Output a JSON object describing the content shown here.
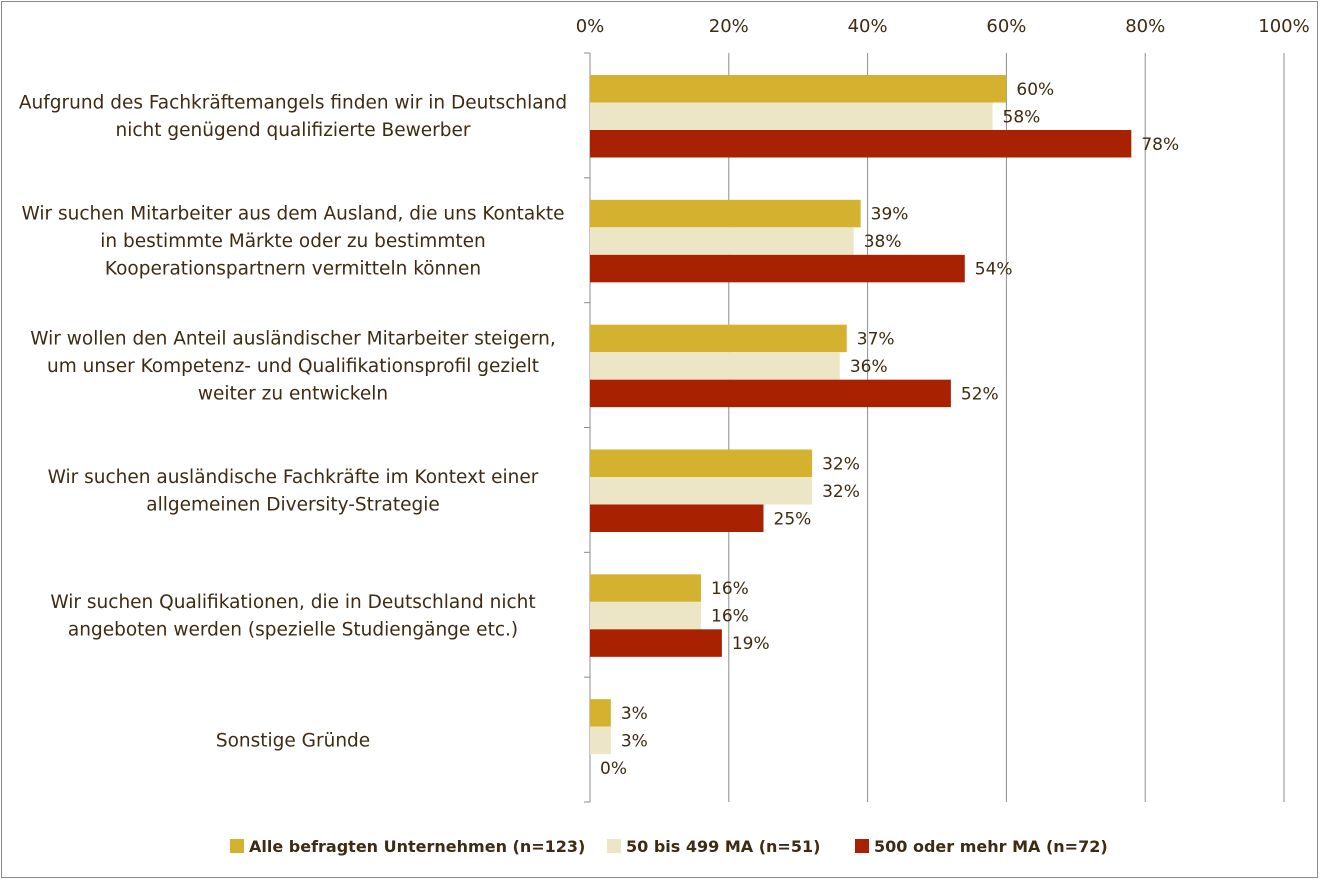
{
  "chart_data": {
    "type": "bar",
    "orientation": "horizontal",
    "xlim": [
      0,
      100
    ],
    "x_ticks": [
      "0%",
      "20%",
      "40%",
      "60%",
      "80%",
      "100%"
    ],
    "grid": true,
    "legend_position": "bottom",
    "categories": [
      [
        "Aufgrund des Fachkräftemangels finden wir in Deutschland",
        "nicht genügend qualifizierte Bewerber"
      ],
      [
        "Wir suchen Mitarbeiter aus dem Ausland, die uns Kontakte",
        "in bestimmte Märkte oder zu bestimmten",
        "Kooperationspartnern vermitteln können"
      ],
      [
        "Wir wollen den Anteil ausländischer Mitarbeiter steigern,",
        "um unser Kompetenz- und Qualifikationsprofil gezielt",
        "weiter zu entwickeln"
      ],
      [
        "Wir suchen ausländische Fachkräfte im Kontext einer",
        "allgemeinen Diversity-Strategie"
      ],
      [
        "Wir suchen Qualifikationen, die in Deutschland nicht",
        "angeboten werden (spezielle Studiengänge etc.)"
      ],
      [
        "Sonstige Gründe"
      ]
    ],
    "series": [
      {
        "name": "Alle befragten Unternehmen (n=123)",
        "color": "#d4b12e",
        "values": [
          60,
          39,
          37,
          32,
          16,
          3
        ]
      },
      {
        "name": "50 bis 499 MA (n=51)",
        "color": "#ede6c6",
        "values": [
          58,
          38,
          36,
          32,
          16,
          3
        ]
      },
      {
        "name": "500 oder mehr MA (n=72)",
        "color": "#a82100",
        "values": [
          78,
          54,
          52,
          25,
          19,
          0
        ]
      }
    ],
    "value_suffix": "%"
  }
}
